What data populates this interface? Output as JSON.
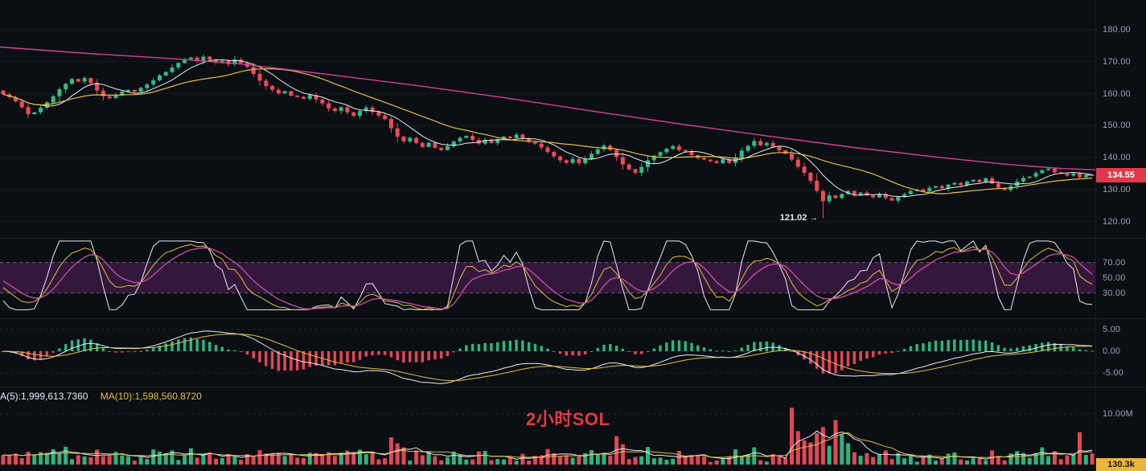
{
  "colors": {
    "background": "#0b0e13",
    "up": "#2ebd85",
    "down": "#ef4a57",
    "ma_short": "#e8ebf2",
    "ma_mid": "#e3c13c",
    "ma_long": "#d4428f",
    "axis_text": "#9aa3ae",
    "price_badge_bg": "#e0394b",
    "volume_badge_bg": "#e9b63b",
    "kdj_band": "rgba(158,52,170,0.28)",
    "kdj_j": "#e8ebf2",
    "kdj_k": "#e3c13c",
    "kdj_d": "#cf4fae",
    "watermark_red": "#e5393f"
  },
  "axis": {
    "price": [
      "180.00",
      "170.00",
      "160.00",
      "150.00",
      "140.00",
      "130.00",
      "120.00"
    ],
    "kdj": [
      "70.00",
      "50.00",
      "30.00"
    ],
    "macd": [
      "5.00",
      "0.00",
      "-5.00"
    ],
    "vol": [
      "10.00M"
    ]
  },
  "badges": {
    "last_price": "134.55",
    "last_volume": "130.3k"
  },
  "annotations": {
    "marked_low_label": "121.02 →",
    "watermark": "2小时SOL"
  },
  "volume_indicator": {
    "ma5_label": "A(5):1,999,613.7360",
    "ma10_label": "MA(10):1,598,560.8720"
  },
  "chart_data": {
    "type": "candlestick",
    "title": "2小时SOL",
    "symbol": "SOL",
    "interval_label": "2小时",
    "panels": [
      "price+MA(white/yellow/pink)",
      "KDJ",
      "MACD",
      "VOL with MA5/MA10"
    ],
    "price_ticks": [
      180,
      170,
      160,
      150,
      140,
      130,
      120
    ],
    "kdj_ticks": [
      70,
      50,
      30
    ],
    "macd_ticks": [
      5,
      0,
      -5
    ],
    "volume_tick_M": 10,
    "last_price": 134.55,
    "open_start": 161.0,
    "marked_low": {
      "index": 131,
      "price": 121.02
    },
    "closes": [
      159.8,
      158.9,
      157.6,
      155.8,
      153.6,
      154.2,
      155.6,
      157.3,
      159.2,
      161.4,
      163.1,
      164.6,
      163.8,
      164.9,
      163.4,
      161.0,
      159.2,
      158.6,
      159.6,
      160.7,
      161.2,
      160.6,
      161.8,
      162.9,
      164.2,
      165.7,
      166.8,
      168.2,
      169.6,
      170.8,
      171.3,
      170.2,
      171.6,
      170.6,
      169.7,
      170.3,
      169.2,
      170.7,
      169.6,
      168.4,
      166.2,
      164.1,
      162.4,
      161.2,
      160.1,
      160.8,
      159.4,
      159.0,
      158.4,
      159.6,
      158.2,
      157.0,
      155.4,
      154.6,
      155.8,
      154.2,
      153.1,
      154.6,
      155.7,
      154.3,
      153.2,
      152.1,
      149.2,
      146.6,
      145.1,
      146.2,
      144.6,
      143.4,
      144.7,
      143.1,
      142.4,
      143.6,
      145.1,
      146.2,
      146.8,
      145.6,
      144.4,
      145.6,
      144.6,
      145.8,
      146.6,
      146.1,
      147.2,
      146.1,
      144.9,
      144.4,
      143.2,
      141.8,
      140.4,
      139.2,
      138.4,
      139.6,
      138.3,
      139.6,
      141.2,
      142.6,
      143.8,
      142.4,
      140.2,
      137.9,
      136.4,
      135.3,
      137.1,
      139.2,
      140.6,
      141.7,
      142.8,
      143.6,
      142.4,
      141.9,
      140.8,
      139.9,
      139.4,
      138.9,
      138.3,
      139.6,
      138.4,
      140.1,
      142.2,
      143.7,
      145.2,
      143.9,
      144.6,
      143.4,
      142.3,
      141.2,
      139.4,
      137.2,
      135.3,
      132.8,
      129.6,
      126.4,
      128.2,
      127.4,
      128.7,
      129.6,
      128.4,
      129.1,
      128.2,
      127.6,
      128.6,
      127.4,
      126.6,
      127.7,
      128.6,
      129.6,
      130.1,
      129.4,
      130.6,
      131.1,
      130.4,
      131.6,
      132.1,
      131.4,
      132.6,
      133.1,
      132.4,
      133.6,
      131.9,
      130.6,
      129.9,
      131.1,
      132.6,
      133.7,
      134.1,
      135.2,
      136.1,
      136.6,
      135.4,
      135.0,
      134.4,
      135.1,
      133.9,
      134.6,
      134.55
    ],
    "ma_long_anchors": [
      [
        0,
        174.6
      ],
      [
        0.08,
        172.6
      ],
      [
        0.16,
        170.9
      ],
      [
        0.22,
        169.3
      ],
      [
        0.3,
        166.0
      ],
      [
        0.38,
        162.6
      ],
      [
        0.46,
        158.8
      ],
      [
        0.54,
        154.6
      ],
      [
        0.62,
        150.6
      ],
      [
        0.7,
        146.8
      ],
      [
        0.78,
        143.2
      ],
      [
        0.86,
        140.0
      ],
      [
        0.92,
        137.9
      ],
      [
        0.97,
        136.6
      ],
      [
        1,
        136.2
      ]
    ],
    "volume_spikes_M": {
      "24": 3.0,
      "27": 2.8,
      "30": 3.2,
      "63": 4.2,
      "64": 3.4,
      "76": 2.6,
      "98": 5.6,
      "99": 4.0,
      "117": 3.0,
      "120": 3.4,
      "126": 11.2,
      "127": 6.6,
      "128": 4.8,
      "130": 6.2,
      "131": 7.4,
      "133": 8.8,
      "134": 6.0,
      "135": 4.2,
      "141": 2.8,
      "152": 2.4,
      "158": 2.8,
      "166": 3.4,
      "172": 6.4,
      "174": 2.2
    },
    "vol_ma5_value": "1,999,613.7360",
    "vol_ma10_value": "1,598,560.8720",
    "seed": 7
  }
}
